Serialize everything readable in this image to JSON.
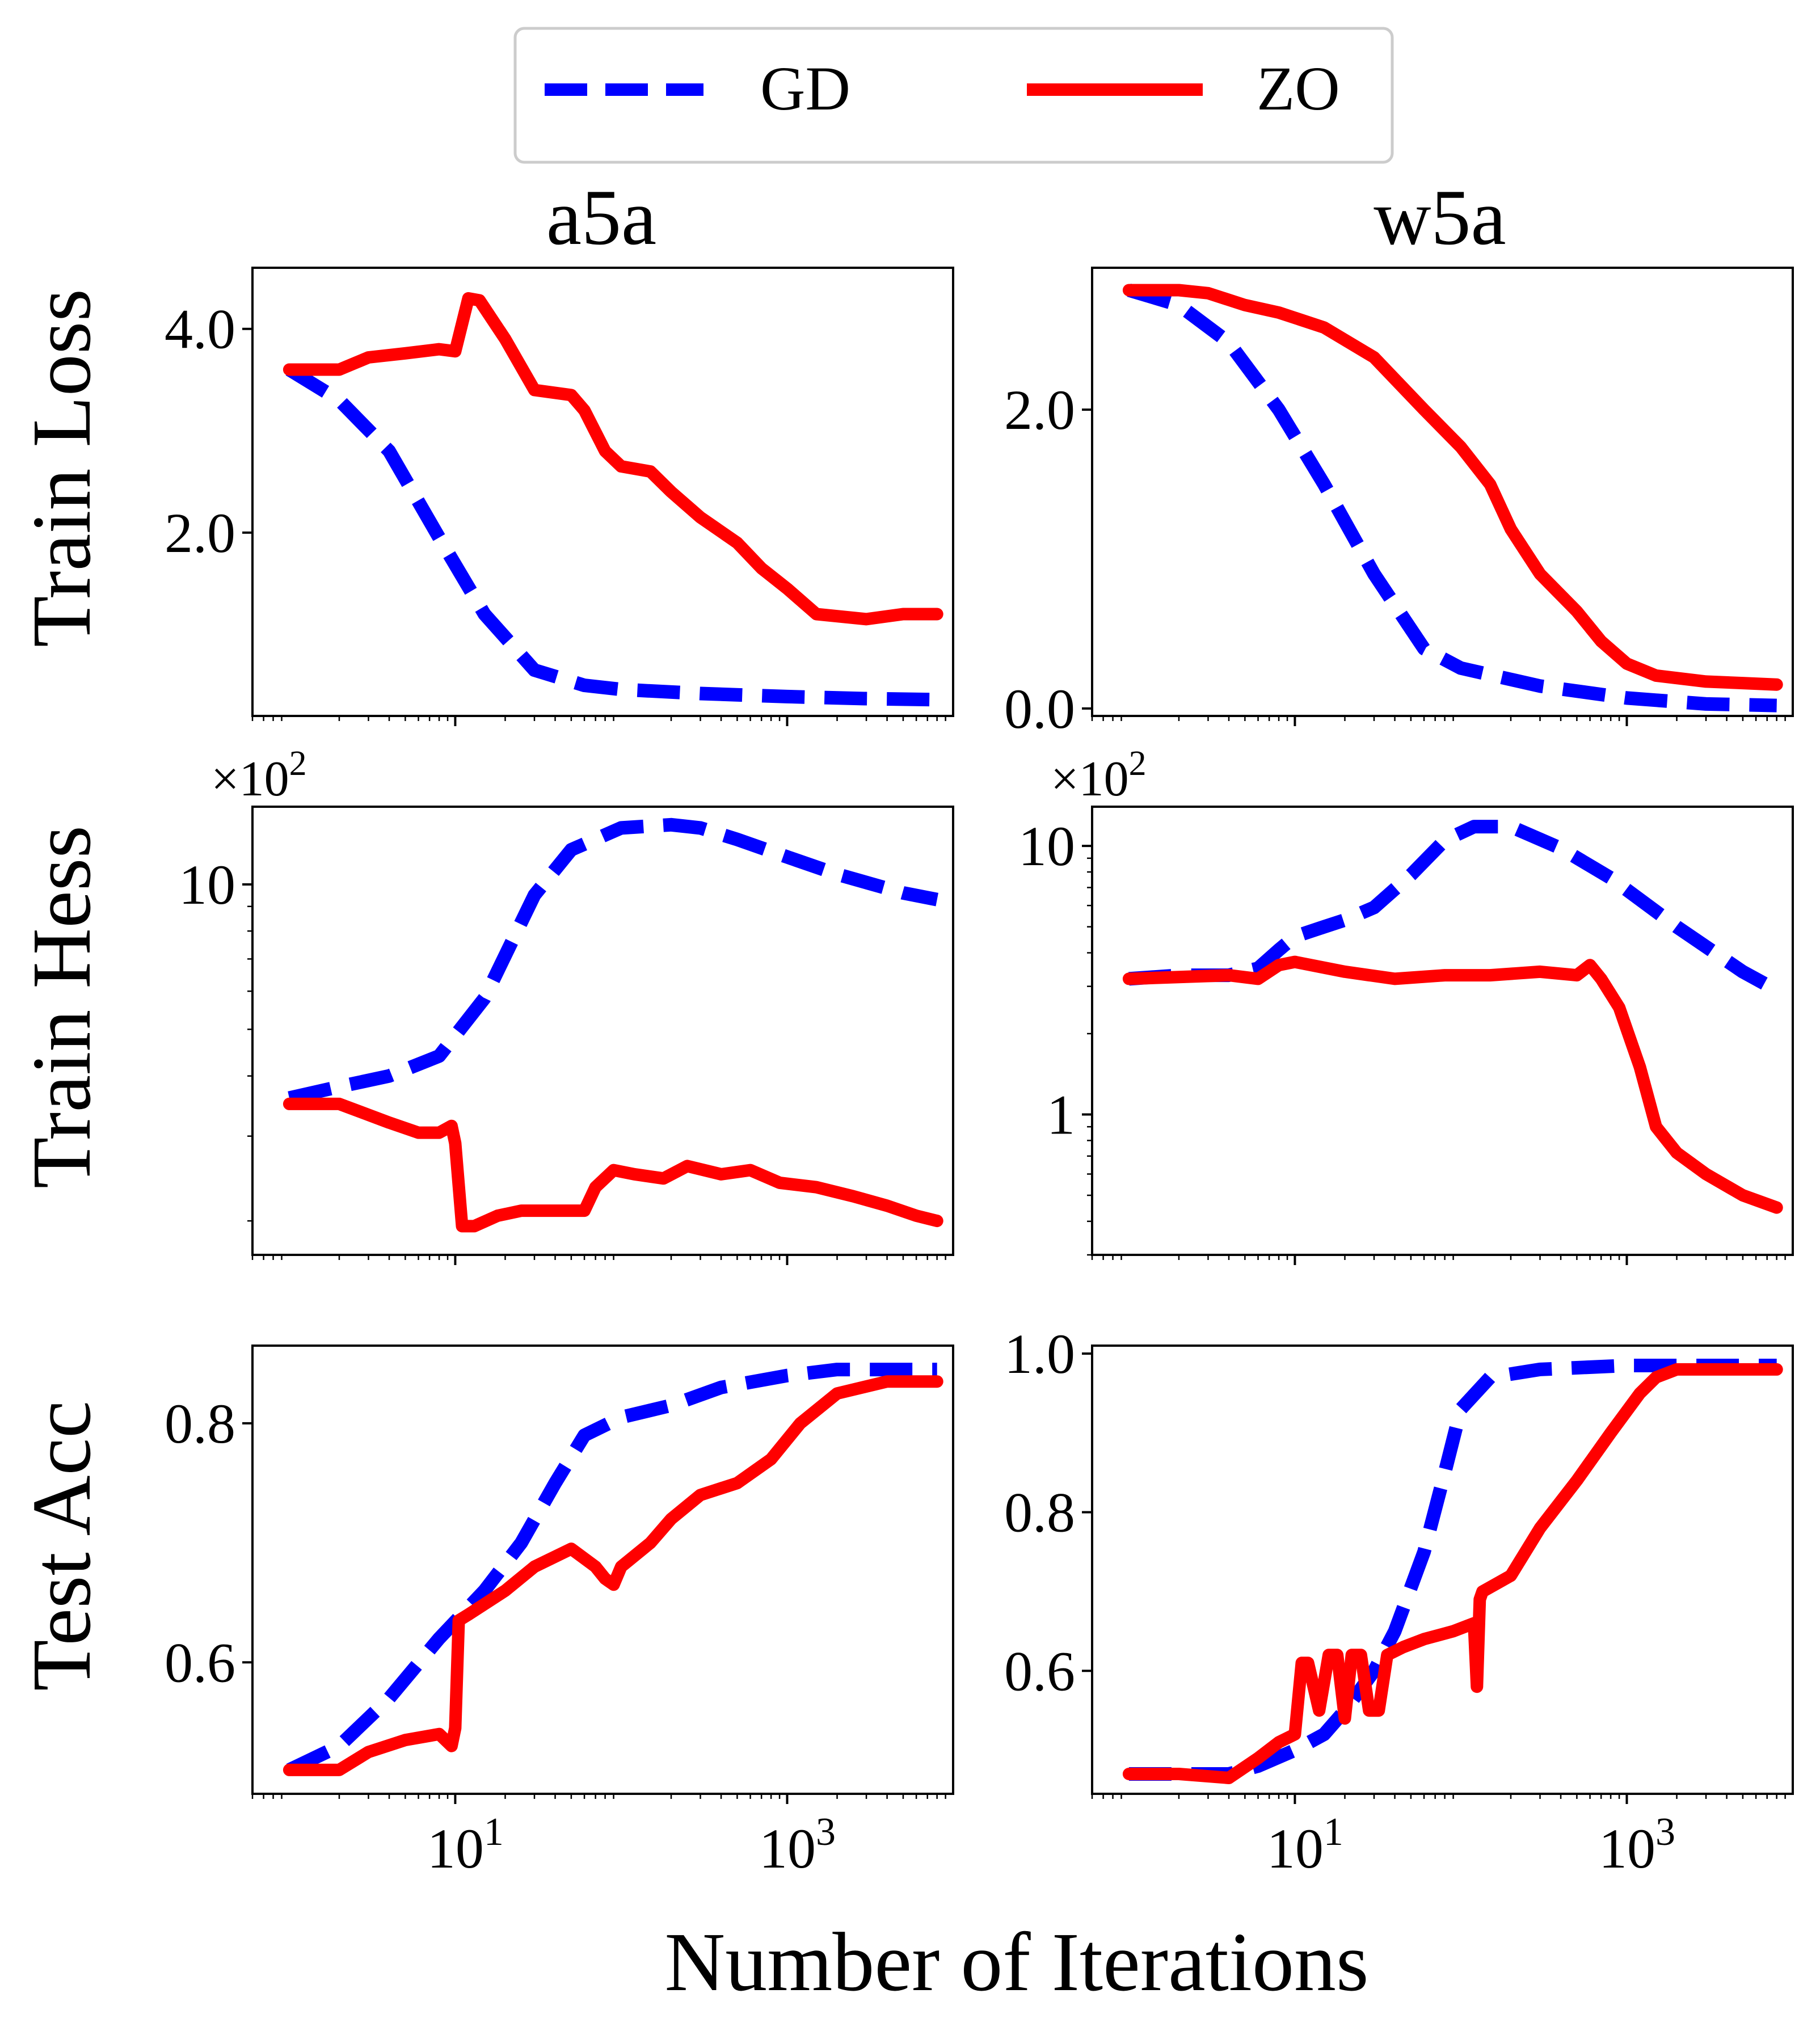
{
  "legend": {
    "placement": "top-center",
    "entries": [
      {
        "label": "GD",
        "color": "#0000ff",
        "style": "dashed"
      },
      {
        "label": "ZO",
        "color": "#ff0000",
        "style": "solid"
      }
    ]
  },
  "xlabel": "Number of Iterations",
  "columns": [
    "a5a",
    "w5a"
  ],
  "row_labels": [
    "Train Loss",
    "Train Hess",
    "Test Acc"
  ],
  "offset_text": "×10",
  "offset_exp": "2",
  "x_ticks": [
    {
      "value": 10,
      "base": "10",
      "exp": "1"
    },
    {
      "value": 1000,
      "base": "10",
      "exp": "3"
    }
  ],
  "chart_data": [
    {
      "type": "line",
      "dataset": "a5a",
      "metric": "Train Loss",
      "xscale": "log",
      "yscale": "linear",
      "xlim": [
        0.6,
        10000
      ],
      "ylim": [
        0.2,
        4.6
      ],
      "yticks": [
        {
          "value": 2.0,
          "label": "2.0"
        },
        {
          "value": 4.0,
          "label": "4.0"
        }
      ],
      "series": [
        {
          "name": "GD",
          "x": [
            1,
            2,
            4,
            8,
            15,
            30,
            60,
            100,
            300,
            1000,
            3000,
            8000
          ],
          "y": [
            3.6,
            3.3,
            2.8,
            1.95,
            1.2,
            0.65,
            0.5,
            0.46,
            0.42,
            0.39,
            0.37,
            0.36
          ]
        },
        {
          "name": "ZO",
          "x": [
            1,
            2,
            3,
            5,
            8,
            10,
            12,
            14,
            20,
            30,
            50,
            60,
            80,
            100,
            150,
            200,
            300,
            500,
            700,
            1000,
            1500,
            3000,
            5000,
            8000
          ],
          "y": [
            3.6,
            3.6,
            3.72,
            3.76,
            3.8,
            3.78,
            4.3,
            4.28,
            3.9,
            3.4,
            3.35,
            3.2,
            2.8,
            2.65,
            2.6,
            2.4,
            2.15,
            1.9,
            1.65,
            1.45,
            1.2,
            1.15,
            1.2,
            1.2
          ]
        }
      ]
    },
    {
      "type": "line",
      "dataset": "w5a",
      "metric": "Train Loss",
      "xscale": "log",
      "yscale": "linear",
      "xlim": [
        0.6,
        10000
      ],
      "ylim": [
        -0.05,
        2.95
      ],
      "yticks": [
        {
          "value": 0.0,
          "label": "0.0"
        },
        {
          "value": 2.0,
          "label": "2.0"
        }
      ],
      "series": [
        {
          "name": "GD",
          "x": [
            1,
            2,
            4,
            8,
            15,
            30,
            60,
            100,
            300,
            1000,
            3000,
            8000
          ],
          "y": [
            2.8,
            2.7,
            2.45,
            2.0,
            1.5,
            0.9,
            0.4,
            0.27,
            0.15,
            0.07,
            0.03,
            0.02
          ]
        },
        {
          "name": "ZO",
          "x": [
            1,
            2,
            3,
            5,
            8,
            15,
            30,
            60,
            100,
            150,
            200,
            300,
            500,
            700,
            1000,
            1500,
            3000,
            5000,
            8000
          ],
          "y": [
            2.8,
            2.8,
            2.78,
            2.7,
            2.65,
            2.55,
            2.35,
            2.0,
            1.75,
            1.5,
            1.2,
            0.9,
            0.65,
            0.45,
            0.3,
            0.22,
            0.18,
            0.17,
            0.16
          ]
        }
      ]
    },
    {
      "type": "line",
      "dataset": "a5a",
      "metric": "Train Hess",
      "xscale": "log",
      "yscale": "log",
      "xlim": [
        0.6,
        10000
      ],
      "ylim": [
        1.7,
        14.5
      ],
      "yticks": [
        {
          "value": 10,
          "label": "10"
        }
      ],
      "series": [
        {
          "name": "GD",
          "x": [
            1,
            2,
            4,
            8,
            15,
            30,
            50,
            100,
            200,
            300,
            500,
            1000,
            2000,
            5000,
            8000
          ],
          "y": [
            3.6,
            3.8,
            4.0,
            4.4,
            5.8,
            9.5,
            11.8,
            13.1,
            13.3,
            13.1,
            12.4,
            11.4,
            10.5,
            9.6,
            9.3
          ]
        },
        {
          "name": "ZO",
          "x": [
            1,
            2,
            4,
            6,
            8,
            9.5,
            10,
            11,
            13,
            18,
            25,
            40,
            60,
            70,
            90,
            120,
            180,
            250,
            400,
            600,
            900,
            1500,
            2500,
            4000,
            6000,
            8000
          ],
          "y": [
            3.5,
            3.5,
            3.2,
            3.05,
            3.05,
            3.15,
            2.9,
            1.95,
            1.95,
            2.05,
            2.1,
            2.1,
            2.1,
            2.35,
            2.55,
            2.5,
            2.45,
            2.6,
            2.5,
            2.55,
            2.4,
            2.35,
            2.25,
            2.15,
            2.05,
            2.0
          ]
        }
      ]
    },
    {
      "type": "line",
      "dataset": "w5a",
      "metric": "Train Hess",
      "xscale": "log",
      "yscale": "log",
      "xlim": [
        0.6,
        10000
      ],
      "ylim": [
        0.3,
        14
      ],
      "yticks": [
        {
          "value": 1,
          "label": "1"
        },
        {
          "value": 10,
          "label": "10"
        }
      ],
      "series": [
        {
          "name": "GD",
          "x": [
            1,
            2,
            4,
            6,
            8,
            10,
            15,
            20,
            30,
            50,
            80,
            120,
            200,
            400,
            800,
            2000,
            5000,
            8000
          ],
          "y": [
            3.2,
            3.3,
            3.3,
            3.5,
            4.1,
            4.6,
            5.0,
            5.3,
            5.9,
            7.8,
            10.5,
            11.8,
            11.8,
            9.8,
            7.6,
            5.0,
            3.4,
            2.9
          ]
        },
        {
          "name": "ZO",
          "x": [
            1,
            2,
            4,
            6,
            8,
            10,
            20,
            40,
            80,
            150,
            300,
            500,
            600,
            700,
            900,
            1200,
            1500,
            2000,
            3000,
            5000,
            8000
          ],
          "y": [
            3.2,
            3.25,
            3.3,
            3.2,
            3.6,
            3.7,
            3.4,
            3.2,
            3.3,
            3.3,
            3.4,
            3.3,
            3.6,
            3.2,
            2.5,
            1.5,
            0.9,
            0.72,
            0.6,
            0.5,
            0.45
          ]
        }
      ]
    },
    {
      "type": "line",
      "dataset": "a5a",
      "metric": "Test Acc",
      "xscale": "log",
      "yscale": "linear",
      "xlim": [
        0.6,
        10000
      ],
      "ylim": [
        0.49,
        0.865
      ],
      "yticks": [
        {
          "value": 0.6,
          "label": "0.6"
        },
        {
          "value": 0.8,
          "label": "0.8"
        }
      ],
      "series": [
        {
          "name": "GD",
          "x": [
            1,
            2,
            4,
            8,
            15,
            25,
            40,
            60,
            100,
            200,
            400,
            1000,
            2000,
            5000,
            8000
          ],
          "y": [
            0.51,
            0.53,
            0.57,
            0.62,
            0.66,
            0.7,
            0.75,
            0.79,
            0.805,
            0.815,
            0.83,
            0.84,
            0.845,
            0.845,
            0.845
          ]
        },
        {
          "name": "ZO",
          "x": [
            1,
            2,
            3,
            5,
            8,
            9.5,
            10,
            10.5,
            12,
            20,
            30,
            50,
            70,
            80,
            90,
            100,
            150,
            200,
            300,
            500,
            800,
            1200,
            2000,
            4000,
            8000
          ],
          "y": [
            0.51,
            0.51,
            0.525,
            0.535,
            0.54,
            0.53,
            0.545,
            0.635,
            0.64,
            0.66,
            0.68,
            0.695,
            0.68,
            0.67,
            0.665,
            0.68,
            0.7,
            0.72,
            0.74,
            0.75,
            0.77,
            0.8,
            0.825,
            0.835,
            0.835
          ]
        }
      ]
    },
    {
      "type": "line",
      "dataset": "w5a",
      "metric": "Test Acc",
      "xscale": "log",
      "yscale": "linear",
      "xlim": [
        0.6,
        10000
      ],
      "ylim": [
        0.445,
        1.01
      ],
      "yticks": [
        {
          "value": 0.6,
          "label": "0.6"
        },
        {
          "value": 0.8,
          "label": "0.8"
        },
        {
          "value": 1.0,
          "label": "1.0"
        }
      ],
      "series": [
        {
          "name": "GD",
          "x": [
            1,
            2,
            4,
            6,
            10,
            15,
            20,
            30,
            40,
            60,
            80,
            100,
            150,
            300,
            1000,
            8000
          ],
          "y": [
            0.47,
            0.47,
            0.47,
            0.48,
            0.5,
            0.52,
            0.55,
            0.6,
            0.65,
            0.75,
            0.85,
            0.93,
            0.97,
            0.98,
            0.985,
            0.985
          ]
        },
        {
          "name": "ZO",
          "x": [
            1,
            2,
            4,
            6,
            8,
            10,
            11,
            12,
            14,
            16,
            18,
            20,
            22,
            25,
            28,
            32,
            36,
            45,
            60,
            90,
            120,
            125,
            130,
            135,
            200,
            300,
            500,
            800,
            1200,
            1500,
            2000,
            5000,
            8000
          ],
          "y": [
            0.47,
            0.47,
            0.465,
            0.49,
            0.51,
            0.52,
            0.61,
            0.61,
            0.55,
            0.62,
            0.62,
            0.54,
            0.62,
            0.62,
            0.55,
            0.55,
            0.62,
            0.63,
            0.64,
            0.65,
            0.66,
            0.58,
            0.69,
            0.7,
            0.72,
            0.78,
            0.84,
            0.9,
            0.95,
            0.97,
            0.98,
            0.98,
            0.98
          ]
        }
      ]
    }
  ]
}
